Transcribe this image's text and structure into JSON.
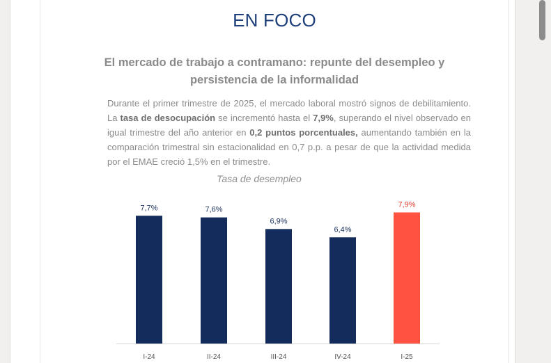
{
  "section": {
    "title": "EN FOCO"
  },
  "article": {
    "headline": "El mercado de trabajo a contramano: repunte del desempleo y persistencia de la informalidad",
    "body": {
      "p1": "Durante el primer trimestre de 2025, el mercado laboral mostró signos de debilitamiento. La ",
      "b1": "tasa de desocupación",
      "p2": " se incrementó hasta el ",
      "b2": "7,9%",
      "p3": ", superando el nivel observado en igual trimestre del año anterior en ",
      "b3": "0,2 puntos porcentuales,",
      "p4": " aumentando también en la comparación trimestral sin estacionalidad en 0,7 p.p. a pesar de que la actividad medida por el EMAE creció 1,5% en el trimestre."
    }
  },
  "chart_data": {
    "type": "bar",
    "title": "Tasa de desempleo",
    "categories": [
      "I-24",
      "II-24",
      "III-24",
      "IV-24",
      "I-25"
    ],
    "values": [
      7.7,
      7.6,
      6.9,
      6.4,
      7.9
    ],
    "labels": [
      "7,7%",
      "7,6%",
      "6,9%",
      "6,4%",
      "7,9%"
    ],
    "ylim": [
      0,
      8.8
    ],
    "grid": false,
    "colors": {
      "default": "#132c5b",
      "highlight": "#ff5240",
      "label": "#1e3560",
      "highlight_label": "#e23b2c",
      "axis": "#d6d6d6",
      "tick": "#555555"
    },
    "highlight_index": 4
  },
  "colors": {
    "accent": "#1e3f7a",
    "text_muted": "#8a8a8a"
  }
}
